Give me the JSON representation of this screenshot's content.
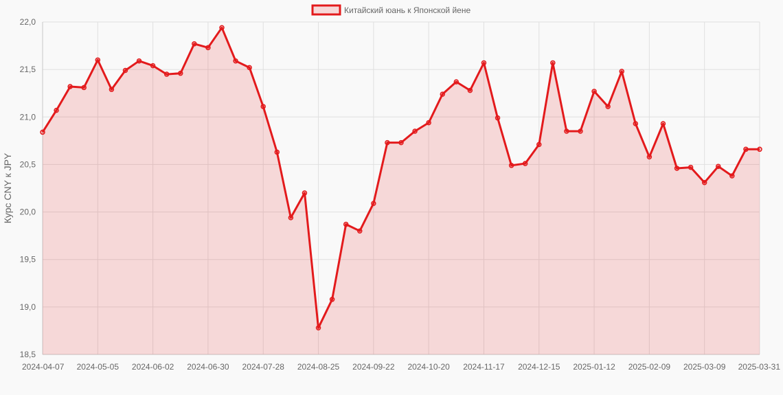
{
  "chart_data": {
    "type": "area",
    "legend": {
      "label": "Китайский юань к Японской йене",
      "position": "top"
    },
    "ylabel": "Курс CNY к JPY",
    "ylim": [
      18.5,
      22.0
    ],
    "y_ticks": [
      "18,5",
      "19,0",
      "19,5",
      "20,0",
      "20,5",
      "21,0",
      "21,5",
      "22,0"
    ],
    "y_tick_values": [
      18.5,
      19.0,
      19.5,
      20.0,
      20.5,
      21.0,
      21.5,
      22.0
    ],
    "x_ticks": [
      "2024-04-07",
      "2024-05-05",
      "2024-06-02",
      "2024-06-30",
      "2024-07-28",
      "2024-08-25",
      "2024-09-22",
      "2024-10-20",
      "2024-11-17",
      "2024-12-15",
      "2025-01-12",
      "2025-02-09",
      "2025-03-09",
      "2025-03-31"
    ],
    "x_tick_positions": [
      0,
      4,
      8,
      12,
      16,
      20,
      24,
      28,
      32,
      36,
      40,
      44,
      48,
      52
    ],
    "grid": true,
    "colors": {
      "line": "#e31a1c",
      "fill": "rgba(227,26,28,0.15)",
      "grid": "#e0e0e0"
    },
    "series": [
      {
        "name": "Китайский юань к Японской йене",
        "values": [
          20.84,
          21.07,
          21.32,
          21.31,
          21.6,
          21.29,
          21.49,
          21.59,
          21.54,
          21.45,
          21.46,
          21.77,
          21.73,
          21.94,
          21.59,
          21.52,
          21.11,
          20.63,
          19.94,
          20.2,
          18.78,
          19.08,
          19.87,
          19.8,
          20.09,
          20.73,
          20.73,
          20.85,
          20.94,
          21.24,
          21.37,
          21.28,
          21.57,
          20.99,
          20.49,
          20.51,
          20.71,
          21.57,
          20.85,
          20.85,
          21.27,
          21.11,
          21.48,
          20.93,
          20.58,
          20.93,
          20.46,
          20.47,
          20.31,
          20.48,
          20.38,
          20.66,
          20.66
        ]
      }
    ]
  }
}
